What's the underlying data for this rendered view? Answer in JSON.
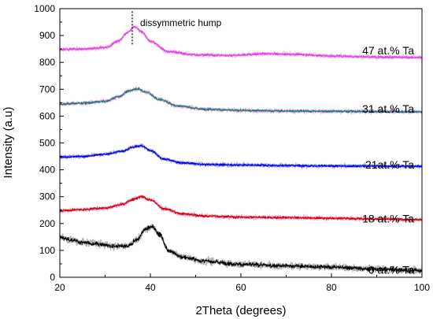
{
  "chart_data": {
    "type": "line",
    "xlabel": "2Theta (degrees)",
    "ylabel": "Intensity (a.u)",
    "xlim": [
      20,
      100
    ],
    "ylim": [
      0,
      1000
    ],
    "xticks": [
      20,
      40,
      60,
      80,
      100
    ],
    "yticks": [
      0,
      100,
      200,
      300,
      400,
      500,
      600,
      700,
      800,
      900,
      1000
    ],
    "xtick_labels": [
      "20",
      "40",
      "60",
      "80",
      "100"
    ],
    "ytick_labels": [
      "0",
      "100",
      "200",
      "300",
      "400",
      "500",
      "600",
      "700",
      "800",
      "900",
      "1000"
    ],
    "grid": false,
    "annotation": {
      "text": "dissymmetric hump",
      "x": 36
    },
    "series": [
      {
        "name": "0 at.% Ta",
        "color": "#000000",
        "shadow": "#9a9a9a",
        "noise": 14,
        "points": [
          [
            20,
            150
          ],
          [
            22,
            140
          ],
          [
            25,
            130
          ],
          [
            28,
            125
          ],
          [
            32,
            115
          ],
          [
            35,
            115
          ],
          [
            37,
            140
          ],
          [
            39,
            180
          ],
          [
            40.5,
            188
          ],
          [
            42,
            160
          ],
          [
            44,
            100
          ],
          [
            47,
            75
          ],
          [
            52,
            60
          ],
          [
            60,
            48
          ],
          [
            70,
            42
          ],
          [
            80,
            38
          ],
          [
            90,
            30
          ],
          [
            100,
            25
          ]
        ]
      },
      {
        "name": "18 at.% Ta",
        "color": "#d40000",
        "shadow": "#e89ad8",
        "noise": 8,
        "points": [
          [
            20,
            248
          ],
          [
            25,
            252
          ],
          [
            30,
            258
          ],
          [
            34,
            272
          ],
          [
            36,
            290
          ],
          [
            38,
            300
          ],
          [
            40,
            288
          ],
          [
            43,
            255
          ],
          [
            47,
            236
          ],
          [
            52,
            228
          ],
          [
            60,
            224
          ],
          [
            70,
            222
          ],
          [
            80,
            220
          ],
          [
            90,
            217
          ],
          [
            100,
            214
          ]
        ]
      },
      {
        "name": "21at.% Ta",
        "color": "#0000dd",
        "shadow": "#8a8aee",
        "noise": 7,
        "points": [
          [
            20,
            447
          ],
          [
            25,
            450
          ],
          [
            30,
            458
          ],
          [
            34,
            470
          ],
          [
            36,
            484
          ],
          [
            38,
            490
          ],
          [
            40,
            472
          ],
          [
            43,
            440
          ],
          [
            47,
            426
          ],
          [
            52,
            420
          ],
          [
            60,
            418
          ],
          [
            70,
            416
          ],
          [
            80,
            414
          ],
          [
            90,
            414
          ],
          [
            100,
            413
          ]
        ]
      },
      {
        "name": "31 at.% Ta",
        "color": "#1e7a7a",
        "shadow": "#e89ad8",
        "noise": 8,
        "points": [
          [
            20,
            645
          ],
          [
            25,
            648
          ],
          [
            30,
            655
          ],
          [
            33,
            672
          ],
          [
            35,
            692
          ],
          [
            37,
            702
          ],
          [
            39,
            690
          ],
          [
            42,
            662
          ],
          [
            46,
            638
          ],
          [
            52,
            626
          ],
          [
            60,
            621
          ],
          [
            70,
            619
          ],
          [
            80,
            618
          ],
          [
            90,
            617
          ],
          [
            100,
            616
          ]
        ]
      },
      {
        "name": "47 at.% Ta",
        "color": "#e040e0",
        "shadow": "#f2b4ee",
        "noise": 8,
        "points": [
          [
            20,
            848
          ],
          [
            25,
            850
          ],
          [
            30,
            855
          ],
          [
            33,
            880
          ],
          [
            35,
            912
          ],
          [
            36.5,
            932
          ],
          [
            38,
            915
          ],
          [
            40,
            878
          ],
          [
            44,
            840
          ],
          [
            50,
            828
          ],
          [
            58,
            826
          ],
          [
            65,
            832
          ],
          [
            72,
            830
          ],
          [
            80,
            824
          ],
          [
            90,
            820
          ],
          [
            100,
            818
          ]
        ]
      }
    ],
    "label_positions_y": [
      28,
      218,
      420,
      628,
      845
    ]
  }
}
